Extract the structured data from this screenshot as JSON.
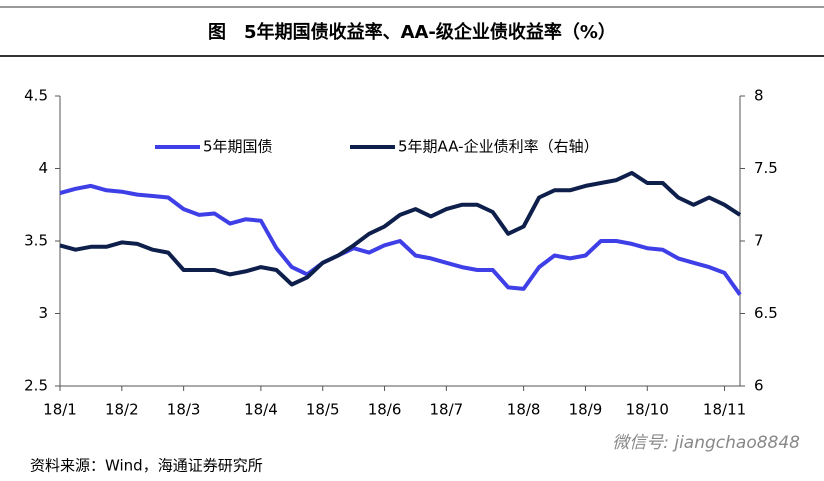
{
  "chart_data": {
    "type": "line",
    "title": "图　5年期国债收益率、AA-级企业债收益率（%）",
    "categories": [
      "18/1",
      null,
      null,
      null,
      "18/2",
      null,
      null,
      null,
      "18/3",
      null,
      null,
      null,
      null,
      "18/4",
      null,
      null,
      null,
      "18/5",
      null,
      null,
      null,
      "18/6",
      null,
      null,
      null,
      "18/7",
      null,
      null,
      null,
      null,
      "18/8",
      null,
      null,
      null,
      "18/9",
      null,
      null,
      null,
      "18/10",
      null,
      null,
      null,
      null,
      "18/11",
      null
    ],
    "series": [
      {
        "name": "5年期国债",
        "color": "#3f3fe8",
        "axis": "y",
        "values": [
          3.83,
          3.86,
          3.88,
          3.85,
          3.84,
          3.82,
          3.81,
          3.8,
          3.72,
          3.68,
          3.69,
          3.62,
          3.65,
          3.64,
          3.45,
          3.32,
          3.27,
          3.35,
          3.4,
          3.45,
          3.42,
          3.47,
          3.5,
          3.4,
          3.38,
          3.35,
          3.32,
          3.3,
          3.3,
          3.18,
          3.17,
          3.32,
          3.4,
          3.38,
          3.4,
          3.5,
          3.5,
          3.48,
          3.45,
          3.44,
          3.38,
          3.35,
          3.32,
          3.28,
          3.13
        ]
      },
      {
        "name": "5年期AA-企业债利率（右轴）",
        "color": "#0d1f4a",
        "axis": "y2",
        "values": [
          6.97,
          6.94,
          6.96,
          6.96,
          6.99,
          6.98,
          6.94,
          6.92,
          6.8,
          6.8,
          6.8,
          6.77,
          6.79,
          6.82,
          6.8,
          6.7,
          6.75,
          6.85,
          6.9,
          6.97,
          7.05,
          7.1,
          7.18,
          7.22,
          7.17,
          7.22,
          7.25,
          7.25,
          7.2,
          7.05,
          7.1,
          7.3,
          7.35,
          7.35,
          7.38,
          7.4,
          7.42,
          7.47,
          7.4,
          7.4,
          7.3,
          7.25,
          7.3,
          7.25,
          7.18
        ]
      }
    ],
    "ylim": [
      2.5,
      4.5
    ],
    "yticks": [
      2.5,
      3,
      3.5,
      4,
      4.5
    ],
    "y2lim": [
      6,
      8
    ],
    "y2ticks": [
      6,
      6.5,
      7,
      7.5,
      8
    ],
    "legend": "upper left",
    "grid": false
  },
  "footer": {
    "source": "资料来源：Wind，海通证券研究所",
    "watermark": "微信号: jiangchao8848"
  }
}
